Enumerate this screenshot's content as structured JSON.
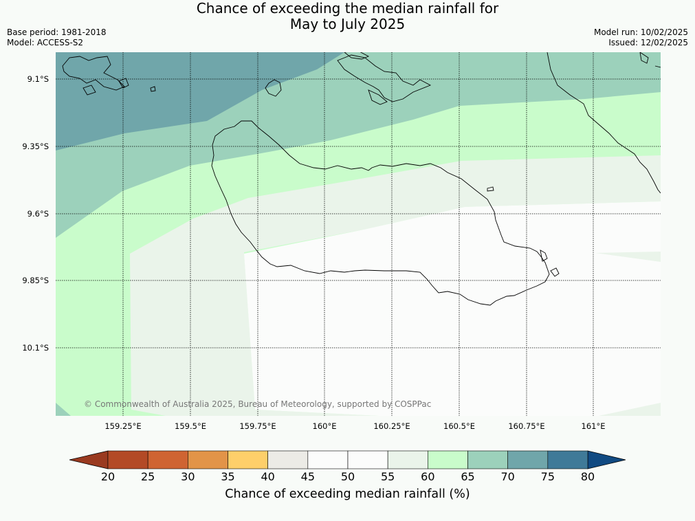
{
  "title": {
    "line1": "Chance of exceeding the median rainfall for",
    "line2": "May to July 2025"
  },
  "meta_left": {
    "base_period": "Base period: 1981-2018",
    "model": "Model: ACCESS-S2"
  },
  "meta_right": {
    "model_run": "Model run: 10/02/2025",
    "issued": "Issued: 12/02/2025"
  },
  "map": {
    "lat_labels": [
      "9.1°S",
      "9.35°S",
      "9.6°S",
      "9.85°S",
      "10.1°S"
    ],
    "lon_labels": [
      "159.25°E",
      "159.5°E",
      "159.75°E",
      "160°E",
      "160.25°E",
      "160.5°E",
      "160.75°E",
      "161°E"
    ],
    "credit": "© Commonwealth of Australia 2025, Bureau of Meteorology, supported by COSPPac"
  },
  "colorbar": {
    "label": "Chance of exceeding median rainfall (%)",
    "ticks": [
      "20",
      "25",
      "30",
      "35",
      "40",
      "45",
      "50",
      "55",
      "60",
      "65",
      "70",
      "75",
      "80"
    ],
    "low_extend_color": "#9a3a20",
    "high_extend_color": "#114a82",
    "colors": [
      "#b34a26",
      "#cf6432",
      "#e29448",
      "#fecf6a",
      "#ecebe6",
      "#fbfcfb",
      "#fbfcfb",
      "#eaf4ea",
      "#c9fccb",
      "#9cd1bb",
      "#70a6aa",
      "#3f7a98"
    ]
  },
  "legend_zone_colors": {
    "p75": "#70a6aa",
    "p70": "#9cd1bb",
    "p65": "#c9fccb",
    "p60": "#eaf4ea",
    "p55": "#fbfcfb"
  }
}
